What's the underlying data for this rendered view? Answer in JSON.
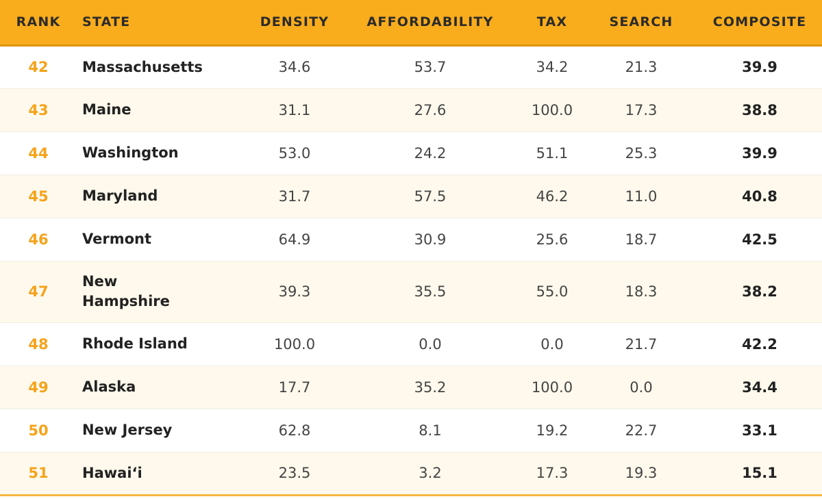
{
  "chart_data": {
    "type": "table",
    "columns": [
      "RANK",
      "STATE",
      "DENSITY",
      "AFFORDABILITY",
      "TAX",
      "SEARCH",
      "COMPOSITE"
    ],
    "rows": [
      {
        "rank": "42",
        "state": "Massachusetts",
        "density": "34.6",
        "affordability": "53.7",
        "tax": "34.2",
        "search": "21.3",
        "composite": "39.9"
      },
      {
        "rank": "43",
        "state": "Maine",
        "density": "31.1",
        "affordability": "27.6",
        "tax": "100.0",
        "search": "17.3",
        "composite": "38.8"
      },
      {
        "rank": "44",
        "state": "Washington",
        "density": "53.0",
        "affordability": "24.2",
        "tax": "51.1",
        "search": "25.3",
        "composite": "39.9"
      },
      {
        "rank": "45",
        "state": "Maryland",
        "density": "31.7",
        "affordability": "57.5",
        "tax": "46.2",
        "search": "11.0",
        "composite": "40.8"
      },
      {
        "rank": "46",
        "state": "Vermont",
        "density": "64.9",
        "affordability": "30.9",
        "tax": "25.6",
        "search": "18.7",
        "composite": "42.5"
      },
      {
        "rank": "47",
        "state": "New Hampshire",
        "density": "39.3",
        "affordability": "35.5",
        "tax": "55.0",
        "search": "18.3",
        "composite": "38.2"
      },
      {
        "rank": "48",
        "state": "Rhode Island",
        "density": "100.0",
        "affordability": "0.0",
        "tax": "0.0",
        "search": "21.7",
        "composite": "42.2"
      },
      {
        "rank": "49",
        "state": "Alaska",
        "density": "17.7",
        "affordability": "35.2",
        "tax": "100.0",
        "search": "0.0",
        "composite": "34.4"
      },
      {
        "rank": "50",
        "state": "New Jersey",
        "density": "62.8",
        "affordability": "8.1",
        "tax": "19.2",
        "search": "22.7",
        "composite": "33.1"
      },
      {
        "rank": "51",
        "state": "Hawai‘i",
        "density": "23.5",
        "affordability": "3.2",
        "tax": "17.3",
        "search": "19.3",
        "composite": "15.1"
      }
    ]
  },
  "colors": {
    "header_bg": "#f9ad1c",
    "rank_text": "#f5a31a",
    "alt_row_bg": "#fef9ec"
  }
}
